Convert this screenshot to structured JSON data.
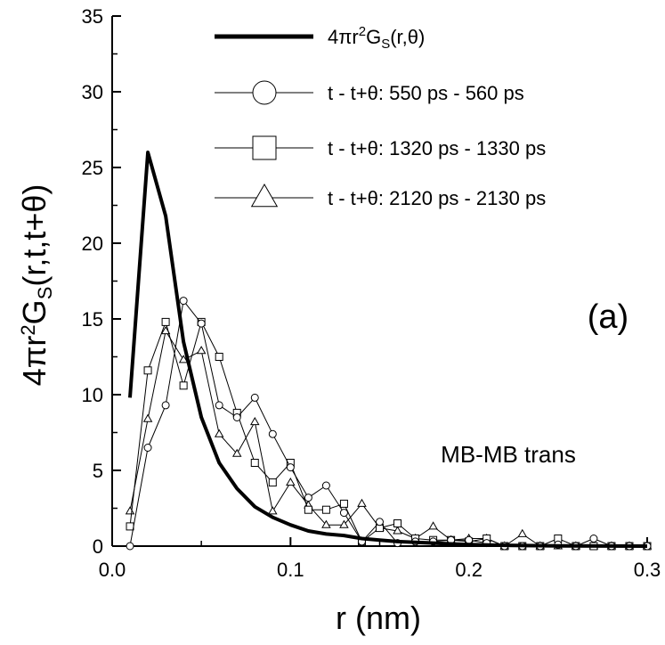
{
  "chart_data": {
    "type": "line",
    "xlabel": "r (nm)",
    "ylabel_prefix": "4πr",
    "ylabel_sup": "2",
    "ylabel_g": "G",
    "ylabel_sub": "S",
    "ylabel_suffix": "(r,t,t+θ)",
    "xlim": [
      0.0,
      0.3
    ],
    "ylim": [
      0,
      35
    ],
    "xticks": [
      0.0,
      0.1,
      0.2,
      0.3
    ],
    "xtick_labels": [
      "0.0",
      "0.1",
      "0.2",
      "0.3"
    ],
    "yticks": [
      0,
      5,
      10,
      15,
      20,
      25,
      30,
      35
    ],
    "ytick_labels": [
      "0",
      "5",
      "10",
      "15",
      "20",
      "25",
      "30",
      "35"
    ],
    "panel_label": "(a)",
    "annotation": "MB-MB trans",
    "legend_position": "top-right",
    "series": [
      {
        "name": "4πr²G_S(r,θ)",
        "legend_prefix": "4πr",
        "legend_sup": "2",
        "legend_g": "G",
        "legend_sub": "S",
        "legend_suffix": "(r,θ)",
        "style": "thick",
        "marker": "none",
        "x": [
          0.01,
          0.02,
          0.03,
          0.04,
          0.05,
          0.06,
          0.07,
          0.08,
          0.09,
          0.1,
          0.11,
          0.12,
          0.13,
          0.14,
          0.15,
          0.16,
          0.17,
          0.18,
          0.19,
          0.2,
          0.22,
          0.25,
          0.3
        ],
        "y": [
          9.8,
          26.0,
          21.8,
          13.5,
          8.5,
          5.5,
          3.8,
          2.6,
          1.9,
          1.4,
          1.0,
          0.8,
          0.7,
          0.5,
          0.4,
          0.3,
          0.25,
          0.2,
          0.15,
          0.1,
          0.05,
          0.02,
          0.0
        ]
      },
      {
        "name": "t - t+θ: 550 ps - 560 ps",
        "style": "thin",
        "marker": "circle",
        "x": [
          0.01,
          0.02,
          0.03,
          0.04,
          0.05,
          0.06,
          0.07,
          0.08,
          0.09,
          0.1,
          0.11,
          0.12,
          0.13,
          0.14,
          0.15,
          0.16,
          0.17,
          0.18,
          0.19,
          0.2,
          0.21,
          0.22,
          0.23,
          0.24,
          0.25,
          0.26,
          0.27,
          0.28,
          0.29,
          0.3
        ],
        "y": [
          0.0,
          6.5,
          9.3,
          16.2,
          14.7,
          9.3,
          8.5,
          9.8,
          7.4,
          5.2,
          3.2,
          4.0,
          2.2,
          0.3,
          1.6,
          0.2,
          0.3,
          0.3,
          0.4,
          0.4,
          0.2,
          0.0,
          0.0,
          0.0,
          0.1,
          0.0,
          0.5,
          0.0,
          0.0,
          0.0
        ]
      },
      {
        "name": "t - t+θ: 1320 ps - 1330 ps",
        "style": "thin",
        "marker": "square",
        "x": [
          0.01,
          0.02,
          0.03,
          0.04,
          0.05,
          0.06,
          0.07,
          0.08,
          0.09,
          0.1,
          0.11,
          0.12,
          0.13,
          0.14,
          0.15,
          0.16,
          0.17,
          0.18,
          0.19,
          0.2,
          0.21,
          0.22,
          0.23,
          0.24,
          0.25,
          0.26,
          0.27,
          0.28,
          0.29,
          0.3
        ],
        "y": [
          1.3,
          11.6,
          14.8,
          10.6,
          14.8,
          12.5,
          8.8,
          5.5,
          4.2,
          5.5,
          2.4,
          2.4,
          2.8,
          0.3,
          1.2,
          1.5,
          0.5,
          0.4,
          0.4,
          0.3,
          0.5,
          0.0,
          0.0,
          0.0,
          0.5,
          0.0,
          0.0,
          0.0,
          0.0,
          0.0
        ]
      },
      {
        "name": "t - t+θ: 2120 ps - 2130 ps",
        "style": "thin",
        "marker": "triangle",
        "x": [
          0.01,
          0.02,
          0.03,
          0.04,
          0.05,
          0.06,
          0.07,
          0.08,
          0.09,
          0.1,
          0.11,
          0.12,
          0.13,
          0.14,
          0.15,
          0.16,
          0.17,
          0.18,
          0.19,
          0.2,
          0.21,
          0.22,
          0.23,
          0.24,
          0.25,
          0.26,
          0.27,
          0.28,
          0.29,
          0.3
        ],
        "y": [
          2.3,
          8.4,
          14.2,
          12.3,
          12.9,
          7.4,
          6.1,
          8.2,
          2.3,
          4.2,
          2.7,
          1.4,
          1.4,
          2.8,
          1.2,
          1.0,
          0.5,
          1.3,
          0.4,
          0.5,
          0.5,
          0.0,
          0.8,
          0.0,
          0.0,
          0.0,
          0.0,
          0.0,
          0.0,
          0.0
        ]
      }
    ]
  }
}
